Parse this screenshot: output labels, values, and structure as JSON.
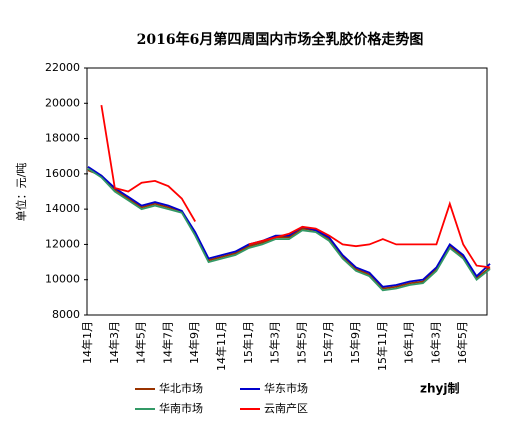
{
  "chart_data": {
    "type": "line",
    "title": "2016年6月第四周国内市场全乳胶价格走势图",
    "y_label": "单位：元/吨",
    "credit": "zhyj制",
    "categories": [
      "14年1月",
      null,
      "14年3月",
      null,
      "14年5月",
      null,
      "14年7月",
      null,
      "14年9月",
      null,
      "14年11月",
      null,
      "15年1月",
      null,
      "15年3月",
      null,
      "15年5月",
      null,
      "15年7月",
      null,
      "15年9月",
      null,
      "15年11月",
      null,
      "16年1月",
      null,
      "16年3月",
      null,
      "16年5月",
      null,
      null
    ],
    "ylim": [
      8000,
      22000
    ],
    "yticks": [
      8000,
      10000,
      12000,
      14000,
      16000,
      18000,
      20000,
      22000
    ],
    "grid": false,
    "series": [
      {
        "name": "华北市场",
        "color": "#993300",
        "values": [
          16200,
          15900,
          15100,
          14600,
          14100,
          14300,
          14100,
          13900,
          12600,
          11100,
          11300,
          11500,
          11900,
          12100,
          12400,
          12400,
          12900,
          12800,
          12300,
          11300,
          10600,
          10300,
          9500,
          9600,
          9800,
          9900,
          10600,
          11900,
          11300,
          10100,
          10700
        ]
      },
      {
        "name": "华东市场",
        "color": "#0000cc",
        "values": [
          16400,
          15900,
          15200,
          14700,
          14200,
          14400,
          14200,
          13900,
          12700,
          11200,
          11400,
          11600,
          12000,
          12200,
          12500,
          12500,
          13000,
          12800,
          12400,
          11400,
          10700,
          10400,
          9600,
          9700,
          9900,
          10000,
          10700,
          12000,
          11400,
          10200,
          10900
        ]
      },
      {
        "name": "华南市场",
        "color": "#339966",
        "values": [
          16300,
          15800,
          15000,
          14500,
          14000,
          14200,
          14000,
          13800,
          12500,
          11000,
          11200,
          11400,
          11800,
          12000,
          12300,
          12300,
          12800,
          12700,
          12200,
          11200,
          10500,
          10200,
          9400,
          9500,
          9700,
          9800,
          10500,
          11800,
          11200,
          10000,
          10600
        ]
      },
      {
        "name": "云南产区",
        "color": "#ff0000",
        "values": [
          null,
          19900,
          15200,
          15000,
          15500,
          15600,
          15300,
          14600,
          13300,
          null,
          null,
          null,
          12000,
          12200,
          12400,
          12600,
          13000,
          12900,
          12500,
          12000,
          11900,
          12000,
          12300,
          12000,
          12000,
          12000,
          12000,
          14300,
          12000,
          10800,
          10700
        ]
      }
    ]
  }
}
